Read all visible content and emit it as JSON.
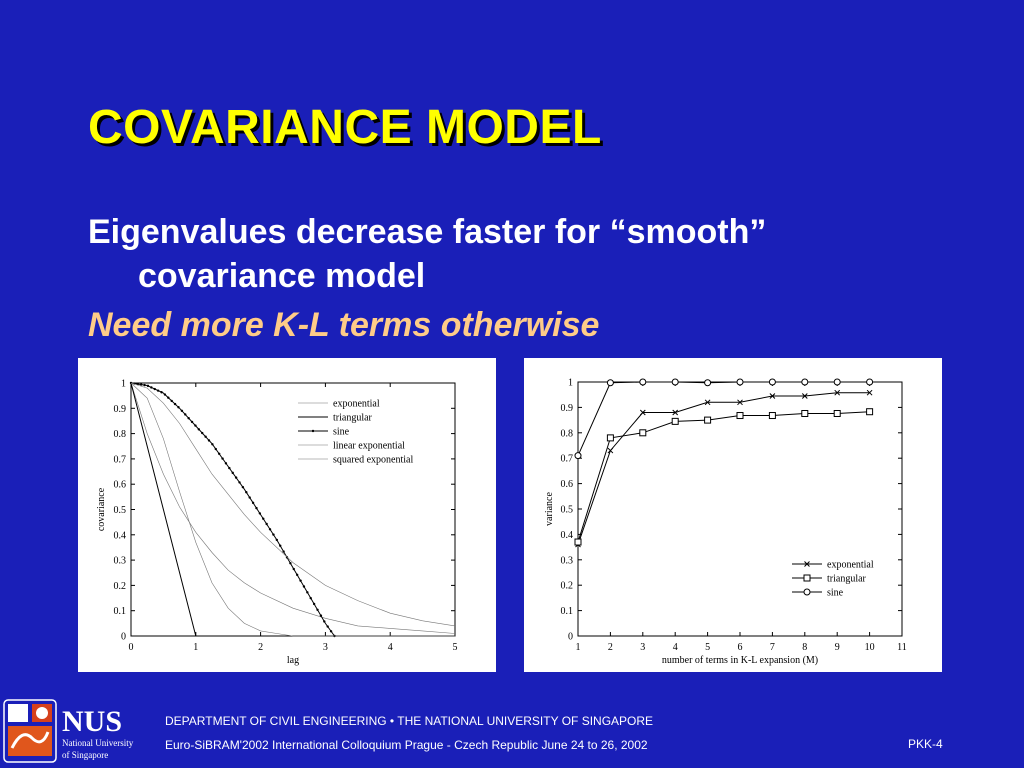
{
  "slide": {
    "title": "COVARIANCE MODEL",
    "line1_part1": "Eigenvalues decrease faster for “smooth”",
    "line1_part2": "covariance model",
    "line2": "Need more K-L terms otherwise"
  },
  "footer": {
    "logo_text": "NUS",
    "logo_sub1": "National University",
    "logo_sub2": "of Singapore",
    "department": "DEPARTMENT OF CIVIL ENGINEERING  •  THE NATIONAL UNIVERSITY OF SINGAPORE",
    "conference": "Euro-SiBRAM'2002 International Colloquium Prague - Czech Republic June 24 to 26, 2002",
    "page": "PKK-4"
  },
  "colors": {
    "background": "#1a1fb8",
    "title": "#ffff00",
    "body_text": "#ffffff",
    "highlight": "#ffcc88"
  },
  "chart_data": [
    {
      "type": "line",
      "xlabel": "lag",
      "ylabel": "covariance",
      "xlim": [
        0,
        5
      ],
      "ylim": [
        0,
        1
      ],
      "xticks": [
        "0",
        "1",
        "2",
        "3",
        "4",
        "5"
      ],
      "yticks": [
        "0",
        "0.1",
        "0.2",
        "0.3",
        "0.4",
        "0.5",
        "0.6",
        "0.7",
        "0.8",
        "0.9",
        "1"
      ],
      "legend_position": "top-right",
      "series": [
        {
          "name": "exponential",
          "style": "dotted",
          "x": [
            0,
            0.25,
            0.5,
            0.75,
            1,
            1.25,
            1.5,
            1.75,
            2,
            2.5,
            3,
            3.5,
            4,
            4.5,
            5
          ],
          "y": [
            1,
            0.8,
            0.64,
            0.51,
            0.41,
            0.33,
            0.26,
            0.21,
            0.17,
            0.11,
            0.07,
            0.04,
            0.03,
            0.02,
            0.01
          ]
        },
        {
          "name": "triangular",
          "style": "solid",
          "x": [
            0,
            1,
            1.5,
            5
          ],
          "y": [
            1,
            0,
            0,
            0
          ]
        },
        {
          "name": "sine",
          "style": "solid-dot-markers",
          "x": [
            0,
            0.25,
            0.5,
            0.75,
            1,
            1.25,
            1.5,
            1.75,
            2,
            2.25,
            2.5,
            2.75,
            3,
            3.14
          ],
          "y": [
            1,
            0.99,
            0.96,
            0.9,
            0.83,
            0.76,
            0.67,
            0.58,
            0.48,
            0.38,
            0.27,
            0.16,
            0.05,
            0
          ]
        },
        {
          "name": "linear exponential",
          "style": "dotted",
          "x": [
            0,
            0.25,
            0.5,
            0.75,
            1,
            1.25,
            1.5,
            1.75,
            2,
            2.5,
            3,
            3.5,
            4,
            4.5,
            5
          ],
          "y": [
            1,
            0.98,
            0.92,
            0.84,
            0.74,
            0.64,
            0.56,
            0.48,
            0.41,
            0.29,
            0.2,
            0.14,
            0.09,
            0.06,
            0.04
          ]
        },
        {
          "name": "squared exponential",
          "style": "dotted",
          "x": [
            0,
            0.25,
            0.5,
            0.75,
            1,
            1.25,
            1.5,
            1.75,
            2,
            2.25,
            2.5,
            3,
            3.5,
            5
          ],
          "y": [
            1,
            0.94,
            0.78,
            0.57,
            0.37,
            0.21,
            0.11,
            0.05,
            0.02,
            0.01,
            0,
            0,
            0,
            0
          ]
        }
      ]
    },
    {
      "type": "line",
      "xlabel": "number of terms in K-L expansion (M)",
      "ylabel": "variance",
      "xlim": [
        1,
        11
      ],
      "ylim": [
        0,
        1
      ],
      "xticks": [
        "1",
        "2",
        "3",
        "4",
        "5",
        "6",
        "7",
        "8",
        "9",
        "10",
        "11"
      ],
      "yticks": [
        "0",
        "0.1",
        "0.2",
        "0.3",
        "0.4",
        "0.5",
        "0.6",
        "0.7",
        "0.8",
        "0.9",
        "1"
      ],
      "legend_position": "bottom-right",
      "series": [
        {
          "name": "exponential",
          "marker": "x",
          "x": [
            1,
            2,
            3,
            4,
            5,
            6,
            7,
            8,
            9,
            10
          ],
          "y": [
            0.36,
            0.73,
            0.88,
            0.88,
            0.92,
            0.92,
            0.945,
            0.945,
            0.958,
            0.958
          ]
        },
        {
          "name": "triangular",
          "marker": "square",
          "x": [
            1,
            2,
            3,
            4,
            5,
            6,
            7,
            8,
            9,
            10
          ],
          "y": [
            0.37,
            0.78,
            0.8,
            0.845,
            0.85,
            0.868,
            0.868,
            0.876,
            0.876,
            0.883
          ]
        },
        {
          "name": "sine",
          "marker": "circle",
          "x": [
            1,
            2,
            3,
            4,
            5,
            6,
            7,
            8,
            9,
            10
          ],
          "y": [
            0.71,
            0.997,
            1.0,
            1.0,
            0.997,
            1.0,
            1.0,
            1.0,
            1.0,
            1.0
          ]
        }
      ]
    }
  ]
}
